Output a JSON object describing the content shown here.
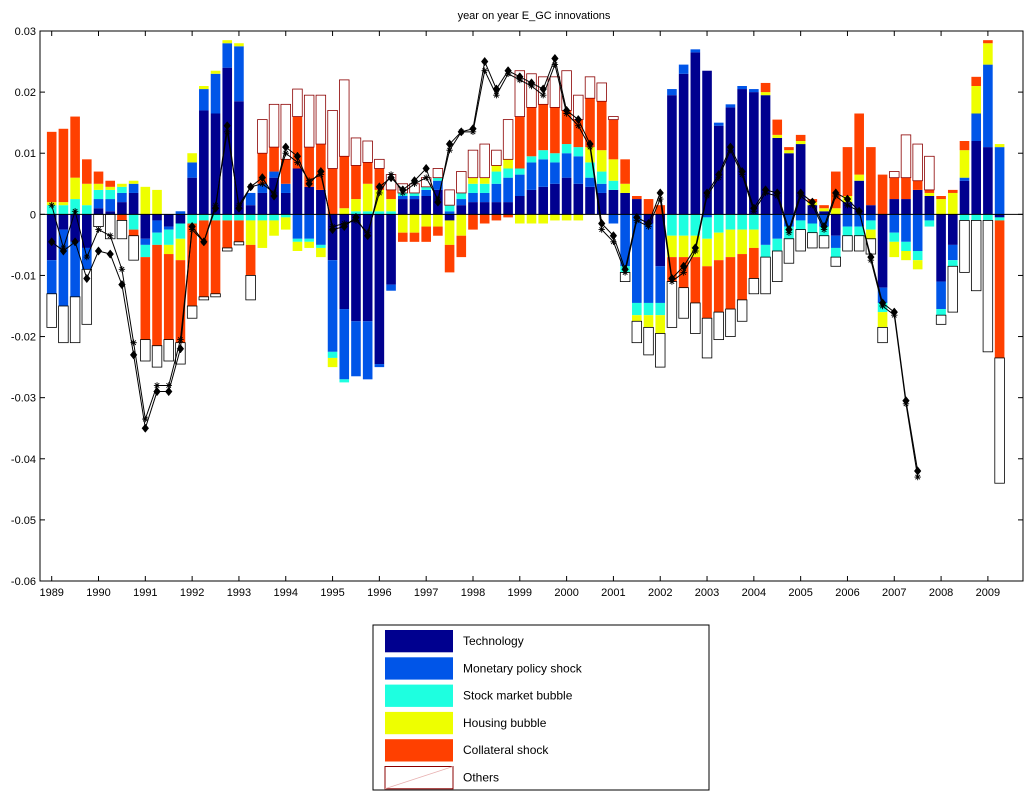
{
  "chart_data": {
    "type": "bar",
    "subtype": "stacked-bar-with-lines",
    "title": "year on year E_GC innovations",
    "xlabel": "",
    "ylabel": "",
    "ylim": [
      -0.06,
      0.03
    ],
    "yticks": [
      0.03,
      0.02,
      0.01,
      0,
      -0.01,
      -0.02,
      -0.03,
      -0.04,
      -0.05,
      -0.06
    ],
    "ytick_labels": [
      "0.03",
      "0.02",
      "0.01",
      "0",
      "-0.01",
      "-0.02",
      "-0.03",
      "-0.04",
      "-0.05",
      "-0.06"
    ],
    "xlim": [
      1988.75,
      2009.75
    ],
    "xticks": [
      1989,
      1990,
      1991,
      1992,
      1993,
      1994,
      1995,
      1996,
      1997,
      1998,
      1999,
      2000,
      2001,
      2002,
      2003,
      2004,
      2005,
      2006,
      2007,
      2008,
      2009
    ],
    "xtick_labels": [
      "1989",
      "1990",
      "1991",
      "1992",
      "1993",
      "1994",
      "1995",
      "1996",
      "1997",
      "1998",
      "1999",
      "2000",
      "2001",
      "2002",
      "2003",
      "2004",
      "2005",
      "2006",
      "2007",
      "2008",
      "2009"
    ],
    "grid": false,
    "legend_position": "below-center",
    "x_start": 1989.0,
    "x_step": 0.25,
    "series": [
      {
        "name": "Technology",
        "color": "#00008F",
        "values": [
          -0.0075,
          -0.0025,
          -0.0045,
          -0.0055,
          0.001,
          0.0005,
          0.002,
          0.0035,
          -0.004,
          -0.001,
          -0.002,
          -0.0015,
          0.006,
          0.017,
          0.0165,
          0.024,
          0.0185,
          0.0015,
          0.0035,
          0.006,
          0.0035,
          0.0075,
          0.0045,
          0.004,
          -0.0075,
          -0.0155,
          -0.0175,
          -0.0175,
          -0.0245,
          -0.0115,
          0.0025,
          0.0025,
          0.003,
          0.004,
          -0.001,
          0.0015,
          0.002,
          0.002,
          0.002,
          0.002,
          0.003,
          0.004,
          0.0045,
          0.005,
          0.006,
          0.005,
          0.0045,
          0.0035,
          0.004,
          0.0035,
          0.0025,
          -0.0015,
          -0.0085,
          0.0195,
          0.023,
          0.0265,
          0.0235,
          0.0145,
          0.0175,
          0.0205,
          0.02,
          0.0195,
          0.0125,
          0.01,
          0.0115,
          0.0015,
          0.0005,
          -0.0035,
          0.002,
          0.0055,
          0.0015,
          -0.012,
          0.0025,
          0.0025,
          0.004,
          0.003,
          -0.011,
          -0.005,
          0.0055,
          0.012,
          0.011,
          -0.0005
        ]
      },
      {
        "name": "Monetary policy shock",
        "color": "#0055E8",
        "values": [
          -0.0055,
          -0.0125,
          -0.009,
          -0.0035,
          0.0015,
          0.002,
          0.0015,
          0.0015,
          -0.001,
          -0.002,
          -0.0005,
          0.0005,
          0.0025,
          0.0035,
          0.0065,
          0.004,
          0.009,
          0.002,
          0.0015,
          0.001,
          0.0015,
          -0.004,
          -0.004,
          -0.005,
          -0.015,
          -0.0115,
          -0.009,
          -0.0095,
          -0.0005,
          -0.001,
          0.0005,
          0.0005,
          0.001,
          0.0015,
          0.0005,
          0.001,
          0.0015,
          0.0015,
          0.003,
          0.004,
          0.0035,
          0.0045,
          0.0045,
          0.0035,
          0.004,
          0.0045,
          0.0015,
          0.0015,
          -0.0015,
          -0.0085,
          -0.0145,
          -0.013,
          -0.006,
          0.001,
          0.0015,
          0.0005,
          -0.0005,
          0.0005,
          0.0005,
          0.0005,
          0.0005,
          -0.005,
          -0.004,
          -0.002,
          -0.001,
          -0.0015,
          -0.002,
          -0.002,
          -0.002,
          -0.002,
          -0.001,
          -0.0025,
          -0.003,
          -0.0045,
          -0.006,
          -0.001,
          -0.0045,
          -0.0025,
          0.0005,
          0.0045,
          0.0135,
          0.011
        ]
      },
      {
        "name": "Stock market bubble",
        "color": "#1EFFE0",
        "values": [
          0.0015,
          0.0015,
          0.0025,
          0.0015,
          0.0015,
          0.0015,
          0.001,
          -0.0025,
          -0.002,
          -0.002,
          -0.0025,
          -0.0025,
          -0.0015,
          -0.001,
          -0.001,
          -0.001,
          -0.001,
          -0.001,
          -0.001,
          -0.001,
          -0.0005,
          -0.0005,
          -0.0005,
          -0.0005,
          -0.001,
          -0.0005,
          0.0005,
          0.0005,
          0.0005,
          0.0005,
          0.0005,
          0.0005,
          0.0005,
          0.0005,
          0.001,
          0.001,
          0.0015,
          0.0015,
          0.002,
          0.0015,
          0.001,
          0.001,
          0.0015,
          0.0015,
          0.0015,
          0.0015,
          0.0025,
          0.002,
          0.0015,
          -0.001,
          -0.002,
          -0.002,
          -0.002,
          -0.0035,
          -0.0035,
          -0.0035,
          -0.0035,
          -0.003,
          -0.0025,
          -0.0025,
          -0.0025,
          -0.002,
          -0.002,
          -0.002,
          -0.0015,
          -0.0015,
          -0.0015,
          -0.0015,
          -0.0015,
          -0.0015,
          -0.0015,
          -0.0015,
          -0.0015,
          -0.0015,
          -0.0015,
          -0.001,
          -0.001,
          -0.001,
          -0.001,
          -0.001,
          -0.001,
          -0.0005
        ]
      },
      {
        "name": "Housing bubble",
        "color": "#EEFF00",
        "values": [
          0.0005,
          0.0005,
          0.0035,
          0.0035,
          0.001,
          0.0005,
          0.0005,
          0.0005,
          0.0045,
          0.004,
          -0.0015,
          -0.0035,
          0.0015,
          0.0005,
          0.0005,
          0.0005,
          0.0005,
          -0.004,
          -0.0045,
          -0.0025,
          -0.002,
          -0.0015,
          -0.001,
          -0.0015,
          -0.0015,
          0.001,
          0.002,
          0.0045,
          0.0035,
          0.002,
          -0.003,
          -0.003,
          -0.002,
          -0.002,
          -0.004,
          -0.0035,
          0.001,
          0.001,
          0.001,
          0.0015,
          -0.0015,
          -0.0015,
          -0.0015,
          -0.001,
          -0.001,
          -0.001,
          0.0025,
          0.0035,
          0.0035,
          0.0015,
          -0.001,
          -0.002,
          -0.003,
          -0.0035,
          -0.0035,
          -0.0035,
          -0.0045,
          -0.0045,
          -0.0045,
          -0.004,
          -0.003,
          0.0005,
          0.0005,
          0.0005,
          0.0005,
          0.0005,
          0.0005,
          0.001,
          0.001,
          0.001,
          -0.0015,
          -0.0025,
          -0.0025,
          -0.0015,
          -0.0015,
          0.0005,
          0.0025,
          0.0035,
          0.0045,
          0.0045,
          0.0035,
          0.0005
        ]
      },
      {
        "name": "Collateral shock",
        "color": "#FF4000",
        "values": [
          0.0115,
          0.012,
          0.01,
          0.004,
          0.002,
          0.001,
          -0.001,
          -0.001,
          -0.0135,
          -0.0165,
          -0.014,
          -0.0135,
          -0.0135,
          -0.0125,
          -0.012,
          -0.0045,
          -0.0035,
          -0.005,
          0.005,
          0.004,
          0.004,
          0.0085,
          0.0065,
          0.0075,
          0.0075,
          0.0085,
          0.0055,
          0.0035,
          0.0035,
          0.0015,
          -0.0015,
          -0.0015,
          -0.0025,
          -0.0015,
          -0.0045,
          -0.0035,
          -0.0025,
          -0.0015,
          -0.001,
          -0.0005,
          0.0085,
          0.008,
          0.0075,
          0.0075,
          0.0055,
          0.0045,
          0.008,
          0.008,
          0.0065,
          0.004,
          0.0005,
          0.0025,
          0.0015,
          -0.004,
          -0.005,
          -0.0075,
          -0.0085,
          -0.0085,
          -0.0085,
          -0.0075,
          -0.005,
          0.0015,
          0.0025,
          0.0005,
          0.001,
          0.0005,
          0.0005,
          0.006,
          0.008,
          0.01,
          0.0095,
          0.0065,
          0.0035,
          0.0035,
          0.0015,
          0.0005,
          0.0005,
          0.0005,
          0.0015,
          0.0015,
          0.0005,
          -0.0225
        ]
      },
      {
        "name": "Others",
        "color": "#FFFFFF",
        "values": [
          -0.0055,
          -0.006,
          -0.0075,
          -0.009,
          -0.002,
          -0.004,
          -0.003,
          -0.004,
          -0.0035,
          -0.0035,
          -0.0035,
          -0.0035,
          -0.002,
          -0.0005,
          -0.0005,
          -0.0005,
          -0.0005,
          -0.004,
          0.0055,
          0.007,
          0.009,
          0.0045,
          0.0085,
          0.008,
          0.0095,
          0.0125,
          0.0045,
          0.0035,
          0.0015,
          0.0025,
          0.0015,
          0.0015,
          0.0015,
          0.0015,
          0.0025,
          0.0035,
          0.0045,
          0.0055,
          0.0025,
          0.0065,
          0.0075,
          0.0055,
          0.0045,
          0.005,
          0.0065,
          0.004,
          0.0035,
          0.003,
          0.0005,
          -0.0015,
          -0.0035,
          -0.0045,
          -0.0055,
          -0.0075,
          -0.005,
          -0.005,
          -0.0065,
          -0.0045,
          -0.0045,
          -0.0035,
          -0.0025,
          -0.006,
          -0.005,
          -0.004,
          -0.0035,
          -0.0025,
          -0.002,
          -0.0015,
          -0.0025,
          -0.0025,
          -0.0025,
          -0.0025,
          0.001,
          0.007,
          0.006,
          0.0055,
          -0.0015,
          -0.0075,
          -0.0085,
          -0.0115,
          -0.0215,
          -0.0205
        ]
      }
    ],
    "lines": [
      {
        "marker": "diamond",
        "values": [
          -0.0045,
          -0.006,
          -0.0045,
          -0.0105,
          -0.006,
          -0.0065,
          -0.0115,
          -0.023,
          -0.035,
          -0.029,
          -0.029,
          -0.022,
          -0.002,
          -0.0045,
          0.001,
          0.0145,
          0.001,
          0.0045,
          0.006,
          0.003,
          0.011,
          0.0095,
          0.005,
          0.007,
          -0.0025,
          -0.002,
          -0.0005,
          -0.0035,
          0.0045,
          0.006,
          0.004,
          0.0055,
          0.0075,
          0.002,
          0.0115,
          0.0135,
          0.014,
          0.025,
          0.0205,
          0.0235,
          0.0225,
          0.0215,
          0.0205,
          0.0255,
          0.017,
          0.0155,
          0.0115,
          -0.0015,
          -0.0035,
          -0.009,
          -0.0005,
          -0.0015,
          0.0035,
          -0.0105,
          -0.0085,
          -0.0055,
          0.0035,
          0.0065,
          0.011,
          0.007,
          0.001,
          0.004,
          0.0035,
          -0.0025,
          0.0035,
          0.002,
          -0.002,
          0.0035,
          0.0025,
          0.0005,
          -0.007,
          -0.0145,
          -0.016,
          -0.0305,
          -0.042
        ]
      },
      {
        "marker": "star",
        "values": [
          0.0015,
          -0.0055,
          0.0005,
          -0.007,
          -0.0025,
          -0.0035,
          -0.009,
          -0.021,
          -0.0335,
          -0.028,
          -0.028,
          -0.0205,
          -0.0025,
          -0.0045,
          0.0015,
          0.0135,
          0.0015,
          0.0045,
          0.005,
          0.0035,
          0.01,
          0.0085,
          0.0055,
          0.0065,
          -0.002,
          -0.0015,
          -0.001,
          -0.003,
          0.0035,
          0.0065,
          0.0035,
          0.005,
          0.006,
          0.0025,
          0.0105,
          0.0135,
          0.0135,
          0.0235,
          0.0195,
          0.023,
          0.022,
          0.021,
          0.0195,
          0.0245,
          0.0165,
          0.0145,
          0.011,
          -0.0025,
          -0.0045,
          -0.0095,
          -0.001,
          -0.002,
          0.0025,
          -0.011,
          -0.0095,
          -0.006,
          0.003,
          0.006,
          0.0105,
          0.0065,
          0.0005,
          0.0035,
          0.003,
          -0.003,
          0.003,
          0.0015,
          -0.0025,
          0.003,
          0.0015,
          0.0005,
          -0.0075,
          -0.015,
          -0.0165,
          -0.031,
          -0.043
        ]
      }
    ],
    "legend": [
      "Technology",
      "Monetary policy shock",
      "Stock market bubble",
      "Housing bubble",
      "Collateral shock",
      "Others"
    ]
  }
}
